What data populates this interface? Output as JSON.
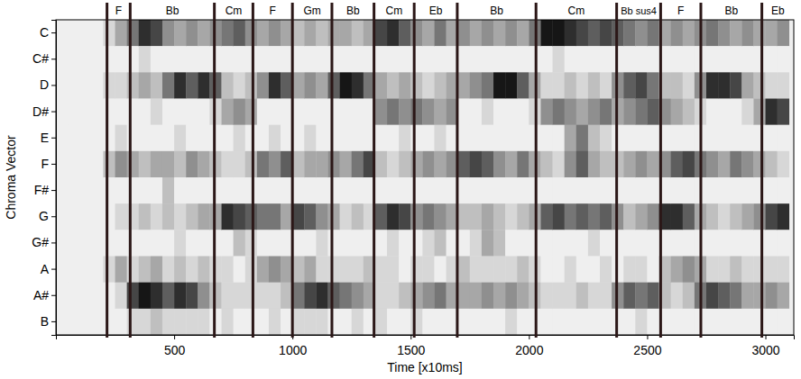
{
  "chart_data": {
    "type": "heatmap",
    "x_label": "Time [x10ms]",
    "y_label": "Chroma Vector",
    "categories": [
      "C",
      "C#",
      "D",
      "D#",
      "E",
      "F",
      "F#",
      "G",
      "G#",
      "A",
      "A#",
      "B"
    ],
    "xlim": [
      0,
      3120
    ],
    "xticks": [
      500,
      1000,
      1500,
      2000,
      2500,
      3000
    ],
    "x_edges": [
      0,
      50,
      100,
      150,
      200,
      250,
      300,
      350,
      400,
      450,
      500,
      550,
      600,
      650,
      700,
      750,
      800,
      850,
      900,
      950,
      1000,
      1050,
      1100,
      1150,
      1200,
      1250,
      1300,
      1350,
      1400,
      1450,
      1500,
      1550,
      1600,
      1650,
      1700,
      1750,
      1800,
      1850,
      1900,
      1950,
      2000,
      2050,
      2100,
      2150,
      2200,
      2250,
      2300,
      2350,
      2400,
      2450,
      2500,
      2550,
      2600,
      2650,
      2700,
      2750,
      2800,
      2850,
      2900,
      2950,
      3000,
      3050,
      3100
    ],
    "cells": [
      [
        0,
        0,
        0,
        0,
        0,
        0,
        0,
        0,
        0,
        0,
        0,
        0
      ],
      [
        0,
        0,
        0,
        0,
        0,
        0,
        0,
        0,
        0,
        0,
        0,
        0
      ],
      [
        0,
        0,
        0,
        0,
        0,
        0,
        0,
        0,
        0,
        0,
        0,
        0
      ],
      [
        0,
        0,
        0,
        0,
        0,
        0,
        0,
        0,
        0,
        0,
        0,
        0
      ],
      [
        0.1,
        0,
        0.1,
        0,
        0,
        0.2,
        0,
        0,
        0,
        0.1,
        0,
        0
      ],
      [
        0.3,
        0,
        0.1,
        0,
        0.1,
        0.4,
        0,
        0.1,
        0,
        0.3,
        0.1,
        0
      ],
      [
        0.5,
        0,
        0.2,
        0,
        0,
        0.3,
        0,
        0.1,
        0,
        0.1,
        0.7,
        0.1
      ],
      [
        0.8,
        0.1,
        0.3,
        0,
        0,
        0.2,
        0,
        0.2,
        0,
        0.2,
        0.9,
        0.1
      ],
      [
        0.7,
        0,
        0.2,
        0.1,
        0,
        0.3,
        0,
        0.1,
        0,
        0.3,
        0.8,
        0.2
      ],
      [
        0.4,
        0,
        0.5,
        0,
        0,
        0.3,
        0.2,
        0.2,
        0,
        0.1,
        0.6,
        0.1
      ],
      [
        0.3,
        0,
        0.8,
        0,
        0.1,
        0.2,
        0,
        0.1,
        0.1,
        0.2,
        0.8,
        0.1
      ],
      [
        0.4,
        0,
        0.6,
        0,
        0,
        0.4,
        0,
        0.2,
        0,
        0.1,
        0.7,
        0.1
      ],
      [
        0.3,
        0,
        0.8,
        0,
        0,
        0.3,
        0,
        0.3,
        0,
        0.2,
        0.4,
        0.1
      ],
      [
        0.4,
        0,
        0.6,
        0.1,
        0,
        0.2,
        0,
        0.3,
        0,
        0.1,
        0.2,
        0
      ],
      [
        0.5,
        0,
        0.2,
        0.3,
        0,
        0.1,
        0,
        0.8,
        0,
        0.1,
        0.1,
        0.1
      ],
      [
        0.6,
        0,
        0.1,
        0.4,
        0.1,
        0.1,
        0,
        0.7,
        0.2,
        0,
        0.1,
        0
      ],
      [
        0.4,
        0,
        0.2,
        0.3,
        0,
        0.2,
        0,
        0.6,
        0.1,
        0.1,
        0.1,
        0
      ],
      [
        0.3,
        0,
        0.4,
        0,
        0,
        0.5,
        0,
        0.5,
        0,
        0.3,
        0.1,
        0
      ],
      [
        0.4,
        0,
        0.8,
        0,
        0.1,
        0.4,
        0,
        0.5,
        0,
        0.4,
        0.1,
        0.1
      ],
      [
        0.3,
        0,
        0.6,
        0,
        0,
        0.6,
        0,
        0.3,
        0,
        0.3,
        0.2,
        0
      ],
      [
        0.2,
        0,
        0.3,
        0,
        0,
        0.2,
        0,
        0.7,
        0,
        0.2,
        0.5,
        0.1
      ],
      [
        0.3,
        0,
        0.4,
        0,
        0.1,
        0.3,
        0,
        0.6,
        0,
        0.3,
        0.7,
        0.1
      ],
      [
        0.2,
        0,
        0.3,
        0,
        0,
        0.3,
        0,
        0.4,
        0.1,
        0.1,
        0.8,
        0.1
      ],
      [
        0.3,
        0,
        0.6,
        0,
        0,
        0.4,
        0,
        0.3,
        0,
        0.1,
        0.6,
        0
      ],
      [
        0.3,
        0,
        0.9,
        0,
        0,
        0.3,
        0,
        0.1,
        0,
        0.1,
        0.5,
        0
      ],
      [
        0.2,
        0,
        0.8,
        0,
        0,
        0.5,
        0,
        0.2,
        0,
        0.1,
        0.4,
        0.1
      ],
      [
        0.3,
        0,
        0.5,
        0,
        0,
        0.7,
        0,
        0.1,
        0,
        0.2,
        0.3,
        0
      ],
      [
        0.7,
        0,
        0.3,
        0.4,
        0,
        0.2,
        0,
        0.6,
        0,
        0.1,
        0.1,
        0.1
      ],
      [
        0.8,
        0,
        0.2,
        0.5,
        0,
        0.1,
        0,
        0.8,
        0.1,
        0.1,
        0.1,
        0
      ],
      [
        0.6,
        0,
        0.3,
        0.4,
        0.1,
        0.2,
        0,
        0.7,
        0,
        0,
        0.2,
        0
      ],
      [
        0.4,
        0,
        0.2,
        0.5,
        0,
        0.3,
        0,
        0.4,
        0,
        0.1,
        0.3,
        0.1
      ],
      [
        0.3,
        0,
        0.1,
        0.4,
        0,
        0.4,
        0,
        0.5,
        0.1,
        0.1,
        0.4,
        0
      ],
      [
        0.5,
        0,
        0.2,
        0.3,
        0.1,
        0.3,
        0,
        0.4,
        0.2,
        0,
        0.5,
        0
      ],
      [
        0.3,
        0,
        0.3,
        0.4,
        0,
        0.4,
        0,
        0.3,
        0,
        0.1,
        0.3,
        0
      ],
      [
        0.4,
        0,
        0.3,
        0,
        0,
        0.6,
        0,
        0.2,
        0,
        0.2,
        0.3,
        0
      ],
      [
        0.3,
        0,
        0.4,
        0,
        0,
        0.7,
        0,
        0.2,
        0.1,
        0.1,
        0.3,
        0
      ],
      [
        0.4,
        0,
        0.5,
        0.1,
        0,
        0.6,
        0,
        0.3,
        0.3,
        0.1,
        0.4,
        0
      ],
      [
        0.3,
        0,
        0.9,
        0,
        0,
        0.4,
        0,
        0.2,
        0.2,
        0.1,
        0.3,
        0
      ],
      [
        0.4,
        0,
        0.9,
        0,
        0,
        0.3,
        0,
        0.1,
        0,
        0.1,
        0.4,
        0.1
      ],
      [
        0.3,
        0,
        0.6,
        0,
        0,
        0.5,
        0,
        0.2,
        0,
        0.2,
        0.3,
        0
      ],
      [
        0.5,
        0,
        0.3,
        0.1,
        0,
        0.3,
        0,
        0.3,
        0,
        0.1,
        0.2,
        0
      ],
      [
        0.9,
        0,
        0.1,
        0.4,
        0,
        0.2,
        0,
        0.6,
        0,
        0,
        0.1,
        0
      ],
      [
        0.9,
        0.1,
        0.1,
        0.5,
        0,
        0.1,
        0,
        0.7,
        0,
        0,
        0.1,
        0
      ],
      [
        0.8,
        0,
        0.2,
        0.4,
        0.3,
        0.4,
        0,
        0.5,
        0,
        0.1,
        0.1,
        0
      ],
      [
        0.7,
        0,
        0.1,
        0.3,
        0.5,
        0.6,
        0,
        0.6,
        0,
        0,
        0.2,
        0
      ],
      [
        0.6,
        0,
        0.2,
        0.4,
        0.2,
        0.3,
        0,
        0.5,
        0.1,
        0,
        0.1,
        0
      ],
      [
        0.7,
        0,
        0.1,
        0.5,
        0.1,
        0.2,
        0,
        0.6,
        0,
        0.1,
        0.1,
        0
      ],
      [
        0.6,
        0,
        0.4,
        0.3,
        0,
        0.2,
        0,
        0.4,
        0,
        0,
        0.4,
        0
      ],
      [
        0.5,
        0,
        0.6,
        0.4,
        0,
        0.3,
        0,
        0.2,
        0,
        0.1,
        0.6,
        0
      ],
      [
        0.4,
        0,
        0.7,
        0.5,
        0,
        0.4,
        0,
        0.3,
        0,
        0.1,
        0.5,
        0.1
      ],
      [
        0.5,
        0,
        0.5,
        0.6,
        0,
        0.3,
        0,
        0.4,
        0,
        0,
        0.6,
        0
      ],
      [
        0.3,
        0,
        0.2,
        0.4,
        0,
        0.4,
        0,
        0.8,
        0,
        0.2,
        0.2,
        0
      ],
      [
        0.4,
        0,
        0.2,
        0.3,
        0,
        0.6,
        0,
        0.8,
        0,
        0.3,
        0.1,
        0
      ],
      [
        0.3,
        0,
        0.1,
        0.2,
        0,
        0.7,
        0,
        0.6,
        0,
        0.4,
        0.2,
        0
      ],
      [
        0.4,
        0,
        0.4,
        0.1,
        0,
        0.5,
        0,
        0.3,
        0,
        0.3,
        0.5,
        0
      ],
      [
        0.5,
        0,
        0.8,
        0,
        0,
        0.4,
        0,
        0.2,
        0,
        0.1,
        0.7,
        0
      ],
      [
        0.4,
        0,
        0.8,
        0,
        0,
        0.3,
        0,
        0.1,
        0,
        0.1,
        0.6,
        0
      ],
      [
        0.3,
        0,
        0.7,
        0,
        0,
        0.5,
        0,
        0.2,
        0,
        0.2,
        0.5,
        0
      ],
      [
        0.4,
        0,
        0.3,
        0.1,
        0,
        0.4,
        0,
        0.3,
        0,
        0.1,
        0.3,
        0
      ],
      [
        0.3,
        0,
        0.2,
        0.3,
        0,
        0.3,
        0,
        0.4,
        0,
        0.1,
        0.3,
        0
      ],
      [
        0.3,
        0,
        0.1,
        0.8,
        0,
        0.2,
        0,
        0.7,
        0,
        0.1,
        0.4,
        0
      ],
      [
        0.4,
        0,
        0.1,
        0.7,
        0,
        0.1,
        0,
        0.8,
        0,
        0.1,
        0.3,
        0
      ]
    ],
    "chord_segments": [
      {
        "start": 216,
        "label": "F"
      },
      {
        "start": 314,
        "label": "Bb"
      },
      {
        "start": 670,
        "label": "Cm"
      },
      {
        "start": 833,
        "label": "F"
      },
      {
        "start": 1000,
        "label": "Gm"
      },
      {
        "start": 1167,
        "label": "Bb"
      },
      {
        "start": 1345,
        "label": "Cm"
      },
      {
        "start": 1515,
        "label": "Eb"
      },
      {
        "start": 1697,
        "label": "Bb"
      },
      {
        "start": 2030,
        "label": "Cm"
      },
      {
        "start": 2371,
        "label": "Bb sus4"
      },
      {
        "start": 2557,
        "label": "F"
      },
      {
        "start": 2727,
        "label": "Bb"
      },
      {
        "start": 2985,
        "label": "Eb"
      }
    ]
  }
}
